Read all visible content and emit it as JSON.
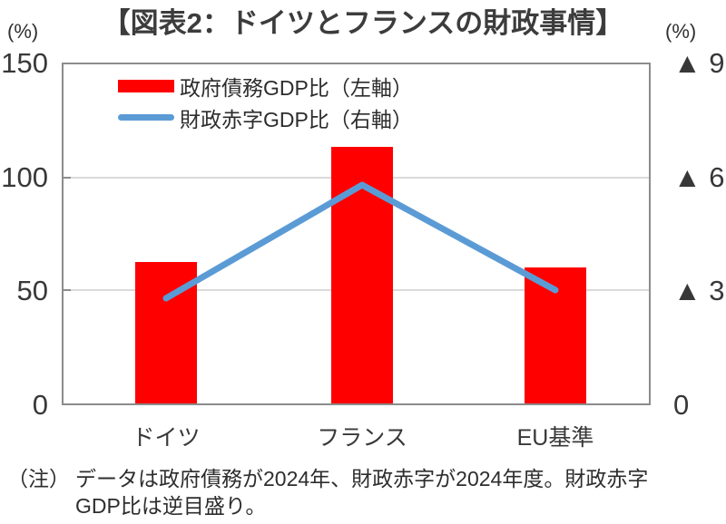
{
  "header": {
    "title": "【図表2：ドイツとフランスの財政事情】",
    "left_unit": "(%)",
    "right_unit": "(%)"
  },
  "legend": [
    {
      "label": "政府債務GDP比（左軸）",
      "swatch": "bar-swatch",
      "color": "#ff0000"
    },
    {
      "label": "財政赤字GDP比（右軸）",
      "swatch": "line-swatch",
      "color": "#5b9bd5"
    }
  ],
  "chart_data": {
    "type": "bar",
    "subtype": "combo-bar-line",
    "title": "【図表2：ドイツとフランスの財政事情】",
    "categories": [
      "ドイツ",
      "フランス",
      "EU基準"
    ],
    "series": [
      {
        "name": "政府債務GDP比（左軸）",
        "type": "bar",
        "axis": "left",
        "color": "#ff0000",
        "values": [
          62.5,
          113.5,
          60
        ]
      },
      {
        "name": "財政赤字GDP比（右軸）",
        "type": "line",
        "axis": "right",
        "color": "#5b9bd5",
        "values": [
          2.8,
          5.8,
          3.0
        ]
      }
    ],
    "left_axis": {
      "unit": "(%)",
      "min": 0,
      "max": 150,
      "ticks": [
        150,
        100,
        50,
        0
      ],
      "tick_labels": [
        "150",
        "100",
        "50",
        "0"
      ]
    },
    "right_axis": {
      "unit": "(%)",
      "min": 0,
      "max": 9,
      "reversed": true,
      "ticks": [
        9,
        6,
        3,
        0
      ],
      "tick_labels": [
        "▲ 9",
        "▲ 6",
        "▲ 3",
        "0"
      ]
    },
    "grid": true,
    "legend_position": "top-left-inside"
  },
  "note": {
    "prefix": "（注）",
    "line1": "データは政府債務が2024年、財政赤字が2024年度。財政赤字",
    "line2": "GDP比は逆目盛り。"
  },
  "colors": {
    "bar": "#ff0000",
    "line": "#5b9bd5",
    "grid": "#dadada",
    "border": "#8c8c8c",
    "text": "#3c3c3c"
  }
}
